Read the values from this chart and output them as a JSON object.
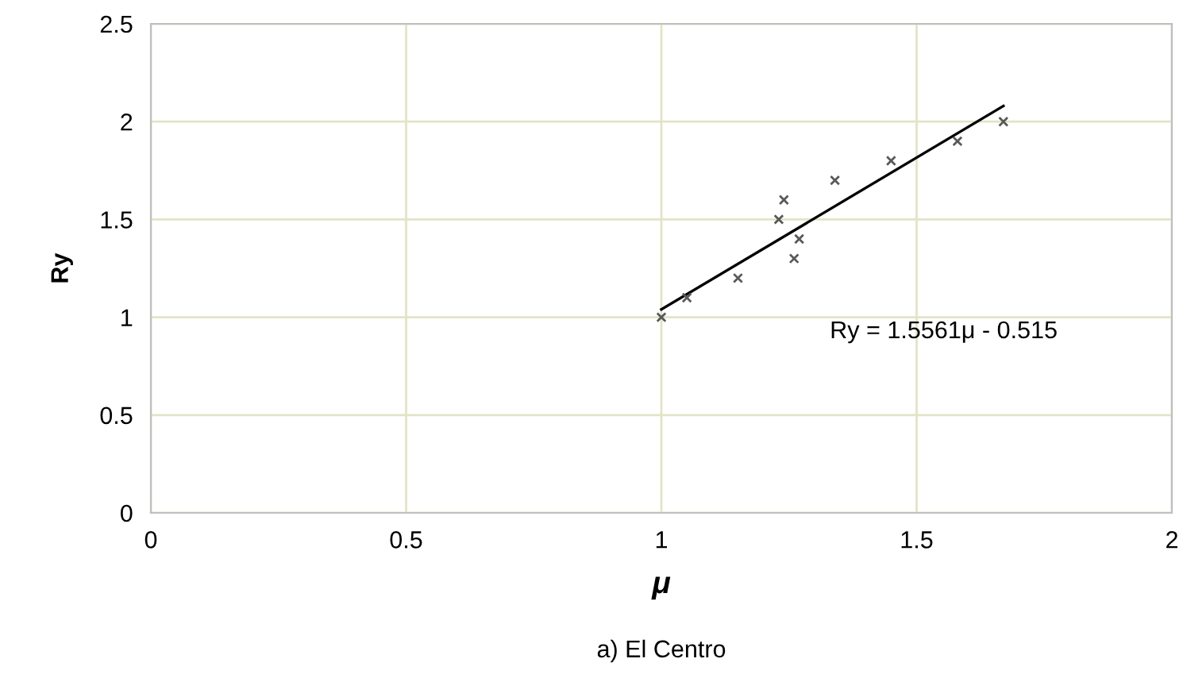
{
  "chart_data": {
    "type": "scatter",
    "title": "a) El Centro",
    "xlabel": "μ",
    "ylabel": "Ry",
    "annotations": [
      "Ry = 1.5561μ - 0.515"
    ],
    "series": [
      {
        "color": "#595959",
        "marker": "cross",
        "x": [
          1.0,
          1.05,
          1.15,
          1.23,
          1.24,
          1.26,
          1.27,
          1.34,
          1.45,
          1.58,
          1.67
        ],
        "values": [
          1.0,
          1.1,
          1.2,
          1.5,
          1.6,
          1.3,
          1.4,
          1.7,
          1.8,
          1.9,
          2.0
        ]
      },
      {
        "type": "line",
        "color": "#000000",
        "x": [
          1.0,
          1.67
        ],
        "values": [
          1.04,
          2.08
        ]
      }
    ],
    "xlim": [
      0,
      2
    ],
    "xticks": [
      0,
      0.5,
      1,
      1.5,
      2
    ],
    "ylim": [
      0,
      2.5
    ],
    "yticks": [
      0,
      0.5,
      1,
      1.5,
      2,
      2.5
    ],
    "grid": true
  }
}
